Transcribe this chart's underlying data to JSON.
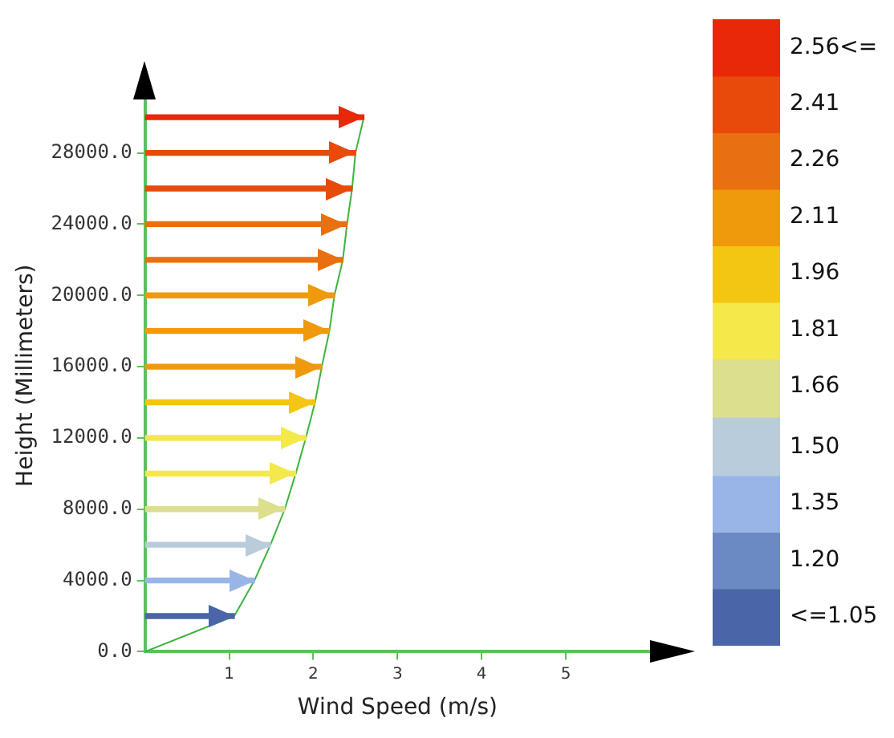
{
  "chart_data": {
    "type": "bar",
    "orientation": "horizontal",
    "xlabel": "Wind Speed (m/s)",
    "ylabel": "Height (Millimeters)",
    "xlim": [
      0,
      6
    ],
    "xticks": [
      1,
      2,
      3,
      4,
      5
    ],
    "ylim": [
      0,
      31000
    ],
    "yticks": [
      {
        "value": 0,
        "label": "0.0"
      },
      {
        "value": 4000,
        "label": "4000.0"
      },
      {
        "value": 8000,
        "label": "8000.0"
      },
      {
        "value": 12000,
        "label": "12000.0"
      },
      {
        "value": 16000,
        "label": "16000.0"
      },
      {
        "value": 20000,
        "label": "20000.0"
      },
      {
        "value": 24000,
        "label": "24000.0"
      },
      {
        "value": 28000,
        "label": "28000.0"
      }
    ],
    "grid": false,
    "legend": false,
    "marker": "none",
    "clim": [
      0.975,
      2.635
    ],
    "cticks": [
      {
        "value": 1.05,
        "label": "<=1.05"
      },
      {
        "value": 1.2,
        "label": "1.20"
      },
      1.35,
      {
        "value": 1.5,
        "label": "1.50"
      },
      1.66,
      1.81,
      1.96,
      2.11,
      2.26,
      2.41,
      {
        "value": 2.56,
        "label": "2.56<="
      }
    ],
    "series": [
      {
        "x": [
          2000,
          4000,
          6000,
          8000,
          10000,
          12000,
          14000,
          16000,
          18000,
          20000,
          22000,
          24000,
          26000,
          28000,
          30000
        ],
        "values": [
          1.06,
          1.3,
          1.49,
          1.66,
          1.79,
          1.91,
          2.02,
          2.1,
          2.19,
          2.25,
          2.35,
          2.4,
          2.46,
          2.5,
          2.6
        ],
        "colors": [
          "#4a66a8",
          "#99b5e8",
          "#b8ccdc",
          "#dcdf8c",
          "#f4e84a",
          "#f4e84a",
          "#f4c614",
          "#ee9a0c",
          "#ee9a0c",
          "#ee9a0c",
          "#e87010",
          "#e87010",
          "#e84a0a",
          "#e84a0a",
          "#e82808"
        ]
      },
      {
        "type": "line",
        "x": [
          0,
          2000,
          4000,
          6000,
          8000,
          10000,
          12000,
          14000,
          16000,
          18000,
          20000,
          22000,
          24000,
          26000,
          28000,
          30000
        ],
        "values": [
          0,
          1.06,
          1.3,
          1.49,
          1.66,
          1.79,
          1.91,
          2.02,
          2.1,
          2.19,
          2.25,
          2.35,
          2.4,
          2.46,
          2.5,
          2.6
        ],
        "color": "#3cb43c"
      }
    ]
  }
}
